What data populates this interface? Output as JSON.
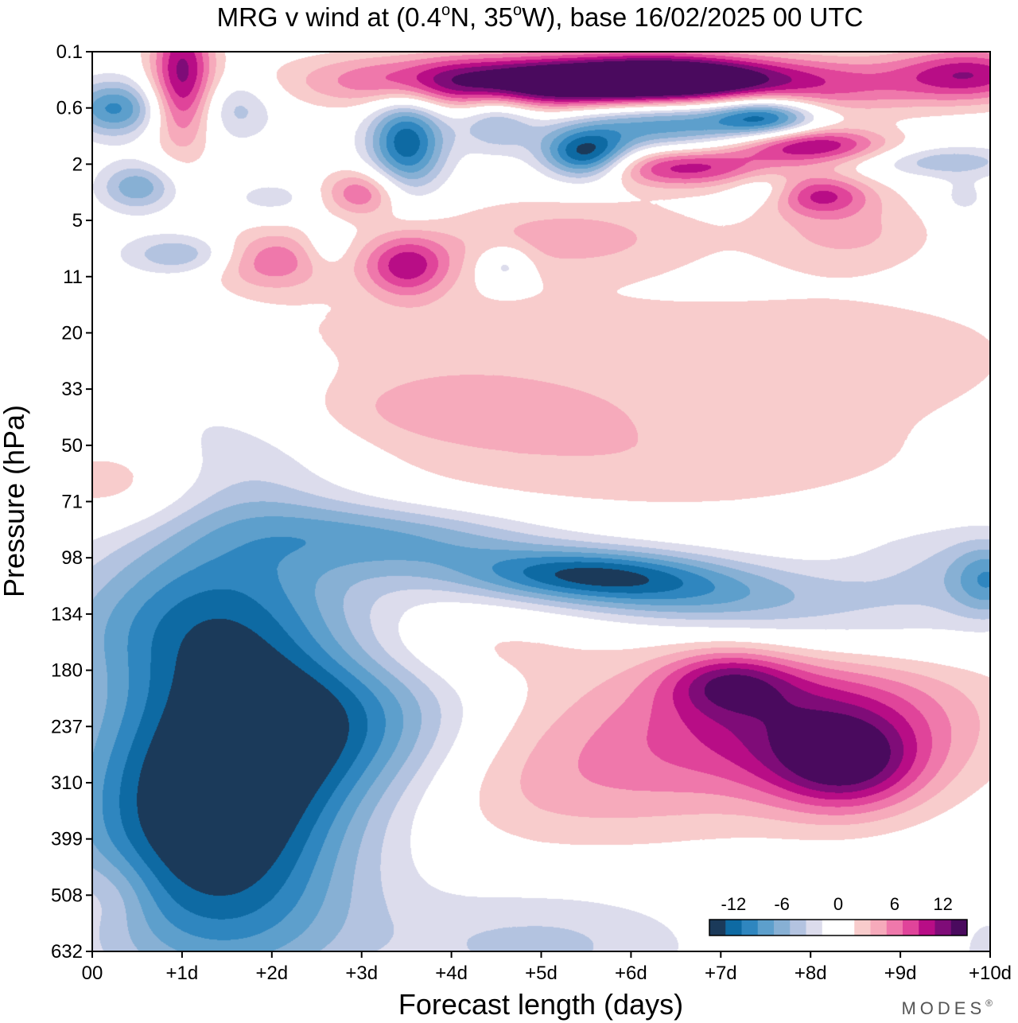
{
  "chart_data": {
    "type": "heatmap",
    "title_parts": {
      "t1": "MRG v wind at (0.4",
      "deg": "o",
      "t2": "N, 35",
      "t3": "W),  base 16/02/2025  00 UTC"
    },
    "xlabel": "Forecast length (days)",
    "ylabel": "Pressure (hPa)",
    "x_ticks": [
      "00",
      "+1d",
      "+2d",
      "+3d",
      "+4d",
      "+5d",
      "+6d",
      "+7d",
      "+8d",
      "+9d",
      "+10d"
    ],
    "xlim": [
      0,
      10
    ],
    "y_ticks": [
      "0.1",
      "0.6",
      "2",
      "5",
      "11",
      "20",
      "33",
      "50",
      "71",
      "98",
      "134",
      "180",
      "237",
      "310",
      "399",
      "508",
      "632"
    ],
    "colorbar": {
      "tick_labels": [
        "-12",
        "-6",
        "0",
        "6",
        "12"
      ],
      "colors": [
        "#1b3a5a",
        "#0e6aa3",
        "#2f86bf",
        "#5d9fcc",
        "#87b0d4",
        "#b3c3e0",
        "#dcdcec",
        "#ffffff",
        "#ffffff",
        "#f8cccc",
        "#f6aabb",
        "#ef78ab",
        "#e0449a",
        "#b80d86",
        "#7f0c78",
        "#4a0a5e"
      ]
    },
    "levels": [
      -14,
      -12,
      -10,
      -8,
      -6,
      -4,
      -2,
      0,
      2,
      4,
      6,
      8,
      10,
      12,
      14,
      16
    ],
    "series": [
      {
        "x": 1.5,
        "y": 11.5,
        "value": -11.5,
        "sx": 1.0,
        "sy": 3.2
      },
      {
        "x": 1.5,
        "y": 13.7,
        "value": -7.5,
        "sx": 1.0,
        "sy": 1.3
      },
      {
        "x": 2.8,
        "y": 11.8,
        "value": -7.0,
        "sx": 1.0,
        "sy": 1.0
      },
      {
        "x": 0.6,
        "y": 10.2,
        "value": -3.5,
        "sx": 1.2,
        "sy": 0.8
      },
      {
        "x": 0.3,
        "y": 13.5,
        "value": -3.5,
        "sx": 0.8,
        "sy": 1.5
      },
      {
        "x": 1.6,
        "y": 15.6,
        "value": -3.0,
        "sx": 1.2,
        "sy": 0.9
      },
      {
        "x": 3.0,
        "y": 12.5,
        "value": -3.0,
        "sx": 1.2,
        "sy": 1.0
      },
      {
        "x": 3.0,
        "y": 8.5,
        "value": -4.0,
        "sx": 1.0,
        "sy": 0.4
      },
      {
        "x": 4.0,
        "y": 8.9,
        "value": -5.5,
        "sx": 1.1,
        "sy": 0.45
      },
      {
        "x": 5.5,
        "y": 9.3,
        "value": -10.5,
        "sx": 0.9,
        "sy": 0.32
      },
      {
        "x": 6.5,
        "y": 9.6,
        "value": -7.0,
        "sx": 1.0,
        "sy": 0.4
      },
      {
        "x": 7.8,
        "y": 9.9,
        "value": -3.5,
        "sx": 1.0,
        "sy": 0.45
      },
      {
        "x": 9.5,
        "y": 9.3,
        "value": -4.0,
        "sx": 0.8,
        "sy": 0.7
      },
      {
        "x": 10.0,
        "y": 9.4,
        "value": -7.0,
        "sx": 0.3,
        "sy": 0.45
      },
      {
        "x": 10.0,
        "y": 16.0,
        "value": -3.0,
        "sx": 0.25,
        "sy": 0.5
      },
      {
        "x": 5.0,
        "y": 15.9,
        "value": -4.5,
        "sx": 1.2,
        "sy": 0.7
      },
      {
        "x": 8.3,
        "y": 10.6,
        "value": -2.0,
        "sx": 1.2,
        "sy": 0.4
      },
      {
        "x": 0.25,
        "y": 1.0,
        "value": -10.5,
        "sx": 0.35,
        "sy": 0.35
      },
      {
        "x": 3.5,
        "y": 1.6,
        "value": -13.5,
        "sx": 0.3,
        "sy": 0.6
      },
      {
        "x": 5.5,
        "y": 1.85,
        "value": -15.5,
        "sx": 0.35,
        "sy": 0.32
      },
      {
        "x": 6.4,
        "y": 1.25,
        "value": -10.0,
        "sx": 0.8,
        "sy": 0.35
      },
      {
        "x": 7.5,
        "y": 1.15,
        "value": -11.5,
        "sx": 0.4,
        "sy": 0.25
      },
      {
        "x": 4.5,
        "y": 1.2,
        "value": -6.5,
        "sx": 0.3,
        "sy": 0.4
      },
      {
        "x": 1.6,
        "y": 1.0,
        "value": -5.0,
        "sx": 0.3,
        "sy": 0.4
      },
      {
        "x": 0.5,
        "y": 2.4,
        "value": -7.5,
        "sx": 0.3,
        "sy": 0.3
      },
      {
        "x": 1.0,
        "y": 3.6,
        "value": -6.0,
        "sx": 0.45,
        "sy": 0.25
      },
      {
        "x": 4.6,
        "y": 3.8,
        "value": -5.0,
        "sx": 0.2,
        "sy": 0.25
      },
      {
        "x": 7.5,
        "y": 2.4,
        "value": -4.0,
        "sx": 0.3,
        "sy": 0.25
      },
      {
        "x": 9.5,
        "y": 1.95,
        "value": -5.5,
        "sx": 0.6,
        "sy": 0.2
      },
      {
        "x": 9.7,
        "y": 2.6,
        "value": -3.0,
        "sx": 0.2,
        "sy": 0.25
      },
      {
        "x": 2.6,
        "y": 3.5,
        "value": -3.0,
        "sx": 0.2,
        "sy": 0.3
      },
      {
        "x": 2.0,
        "y": 2.6,
        "value": -3.0,
        "sx": 0.3,
        "sy": 0.2
      },
      {
        "x": 1.0,
        "y": 0.4,
        "value": 12.5,
        "sx": 0.25,
        "sy": 0.9
      },
      {
        "x": 5.8,
        "y": 0.55,
        "value": 15.5,
        "sx": 1.3,
        "sy": 0.32
      },
      {
        "x": 6.5,
        "y": 0.45,
        "value": 11.0,
        "sx": 0.8,
        "sy": 0.3
      },
      {
        "x": 4.0,
        "y": 0.5,
        "value": 9.0,
        "sx": 1.2,
        "sy": 0.35
      },
      {
        "x": 9.8,
        "y": 0.4,
        "value": 11.0,
        "sx": 0.6,
        "sy": 0.35
      },
      {
        "x": 8.3,
        "y": 0.6,
        "value": 6.0,
        "sx": 0.8,
        "sy": 0.4
      },
      {
        "x": 8.0,
        "y": 1.65,
        "value": 12.0,
        "sx": 0.6,
        "sy": 0.22
      },
      {
        "x": 6.6,
        "y": 2.05,
        "value": 11.0,
        "sx": 0.8,
        "sy": 0.25
      },
      {
        "x": 8.1,
        "y": 2.55,
        "value": 9.0,
        "sx": 0.4,
        "sy": 0.25
      },
      {
        "x": 3.0,
        "y": 2.5,
        "value": 8.0,
        "sx": 0.3,
        "sy": 0.3
      },
      {
        "x": 3.5,
        "y": 3.8,
        "value": 10.5,
        "sx": 0.35,
        "sy": 0.4
      },
      {
        "x": 2.0,
        "y": 3.7,
        "value": 8.0,
        "sx": 0.5,
        "sy": 0.4
      },
      {
        "x": 5.3,
        "y": 3.3,
        "value": 5.0,
        "sx": 1.1,
        "sy": 0.5
      },
      {
        "x": 8.4,
        "y": 3.2,
        "value": 4.5,
        "sx": 0.7,
        "sy": 0.5
      },
      {
        "x": 3.8,
        "y": 5.0,
        "value": 3.0,
        "sx": 3.0,
        "sy": 0.6
      },
      {
        "x": 4.0,
        "y": 6.3,
        "value": 4.5,
        "sx": 1.5,
        "sy": 0.5
      },
      {
        "x": 8.5,
        "y": 5.5,
        "value": 3.0,
        "sx": 1.5,
        "sy": 0.8
      },
      {
        "x": 0.4,
        "y": 7.7,
        "value": 5.0,
        "sx": 0.7,
        "sy": 0.6
      },
      {
        "x": 6.0,
        "y": 7.3,
        "value": 3.5,
        "sx": 2.5,
        "sy": 0.7
      },
      {
        "x": 6.2,
        "y": 12.3,
        "value": 4.0,
        "sx": 2.0,
        "sy": 1.0
      },
      {
        "x": 8.0,
        "y": 11.8,
        "value": 9.0,
        "sx": 1.3,
        "sy": 0.9
      },
      {
        "x": 8.4,
        "y": 12.7,
        "value": 10.5,
        "sx": 0.6,
        "sy": 0.6
      },
      {
        "x": 7.1,
        "y": 11.2,
        "value": 8.0,
        "sx": 0.5,
        "sy": 0.4
      },
      {
        "x": 5.0,
        "y": 13.2,
        "value": 3.0,
        "sx": 1.5,
        "sy": 0.8
      },
      {
        "x": 4.0,
        "y": 10.6,
        "value": 2.8,
        "sx": 1.0,
        "sy": 0.5
      },
      {
        "x": 0.2,
        "y": 15.0,
        "value": 3.0,
        "sx": 0.35,
        "sy": 0.5
      }
    ]
  },
  "branding": {
    "label": "MODES",
    "mark": "®"
  }
}
